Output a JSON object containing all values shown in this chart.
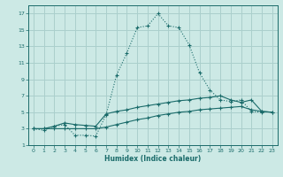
{
  "xlabel": "Humidex (Indice chaleur)",
  "xlim": [
    -0.5,
    23.5
  ],
  "ylim": [
    1,
    18
  ],
  "xticks": [
    0,
    1,
    2,
    3,
    4,
    5,
    6,
    7,
    8,
    9,
    10,
    11,
    12,
    13,
    14,
    15,
    16,
    17,
    18,
    19,
    20,
    21,
    22,
    23
  ],
  "yticks": [
    1,
    3,
    5,
    7,
    9,
    11,
    13,
    15,
    17
  ],
  "background_color": "#cce9e5",
  "line_color": "#1a6b6a",
  "grid_color": "#aacfcc",
  "curve1_x": [
    0,
    1,
    2,
    3,
    4,
    5,
    6,
    7,
    8,
    9,
    10,
    11,
    12,
    13,
    14,
    15,
    16,
    17,
    18,
    19,
    20,
    21,
    22
  ],
  "curve1_y": [
    3.0,
    2.8,
    3.3,
    3.5,
    2.2,
    2.2,
    2.1,
    4.7,
    9.5,
    12.2,
    15.3,
    15.5,
    17.0,
    15.5,
    15.3,
    13.2,
    9.8,
    7.7,
    6.5,
    6.3,
    6.5,
    5.1,
    5.0
  ],
  "curve2_x": [
    0,
    1,
    2,
    3,
    4,
    5,
    6,
    7,
    8,
    9,
    10,
    11,
    12,
    13,
    14,
    15,
    16,
    17,
    18,
    19,
    20,
    21,
    22,
    23
  ],
  "curve2_y": [
    3.0,
    3.0,
    3.3,
    3.7,
    3.5,
    3.4,
    3.3,
    4.8,
    5.1,
    5.3,
    5.6,
    5.8,
    6.0,
    6.2,
    6.4,
    6.5,
    6.7,
    6.8,
    7.0,
    6.5,
    6.2,
    6.5,
    5.1,
    5.0
  ],
  "curve3_x": [
    0,
    1,
    2,
    3,
    4,
    5,
    6,
    7,
    8,
    9,
    10,
    11,
    12,
    13,
    14,
    15,
    16,
    17,
    18,
    19,
    20,
    21,
    22,
    23
  ],
  "curve3_y": [
    3.0,
    3.0,
    3.0,
    3.0,
    3.0,
    3.0,
    3.0,
    3.2,
    3.5,
    3.8,
    4.1,
    4.3,
    4.6,
    4.8,
    5.0,
    5.1,
    5.3,
    5.4,
    5.5,
    5.6,
    5.7,
    5.3,
    5.1,
    5.0
  ]
}
